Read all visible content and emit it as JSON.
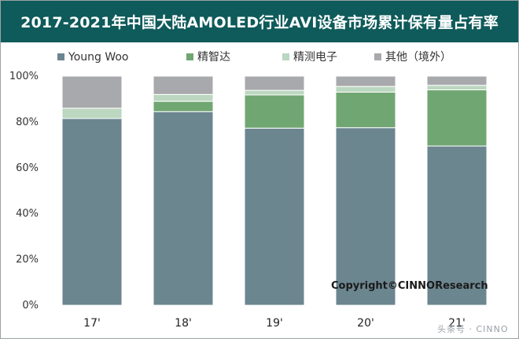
{
  "title": "2017-2021年中国大陆AMOLED行业AVI设备市场累计保有量占有率",
  "copyright": "Copyright©CINNOResearch",
  "watermark": "头条号 · CINNO",
  "colors": {
    "title_bg": "#0f5a5a",
    "young_woo": "#6c8690",
    "jingzhida": "#70a672",
    "jingce": "#bcd7c0",
    "other": "#a8a9ac"
  },
  "chart_data": {
    "type": "bar",
    "stacked": true,
    "title": "2017-2021年中国大陆AMOLED行业AVI设备市场累计保有量占有率",
    "categories": [
      "17'",
      "18'",
      "19'",
      "20'",
      "21'"
    ],
    "series": [
      {
        "name": "Young Woo",
        "color": "#6c8690",
        "values": [
          81.5,
          84.5,
          77.3,
          77.5,
          69.5
        ]
      },
      {
        "name": "精智达",
        "color": "#70a672",
        "values": [
          0,
          4.5,
          14.5,
          15.5,
          24.5
        ]
      },
      {
        "name": "精测电子",
        "color": "#bcd7c0",
        "values": [
          4.5,
          3.0,
          2.0,
          2.5,
          2.0
        ]
      },
      {
        "name": "其他（境外）",
        "color": "#a8a9ac",
        "values": [
          14.0,
          8.0,
          6.2,
          4.5,
          4.0
        ]
      }
    ],
    "yticks": [
      "0%",
      "20%",
      "40%",
      "60%",
      "80%",
      "100%"
    ],
    "ylim": [
      0,
      100
    ],
    "legend_position": "top-left",
    "grid": false
  }
}
